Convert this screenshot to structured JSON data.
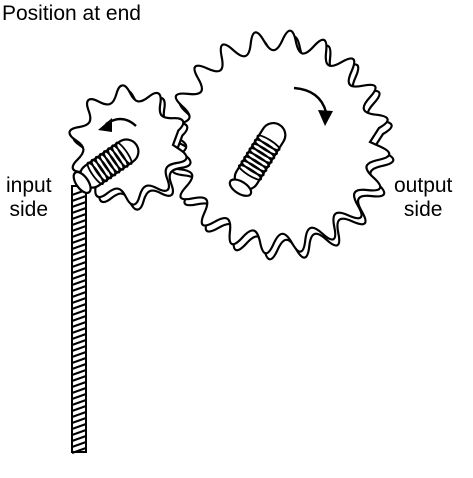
{
  "title": "Position at end",
  "labels": {
    "input": [
      "input",
      "side"
    ],
    "output": [
      "output",
      "side"
    ]
  },
  "colors": {
    "ink": "#000000",
    "paper": "#ffffff"
  },
  "parts": {
    "small_gear": {
      "teeth": 10,
      "rotation": "counterclockwise",
      "icon": "gear-icon"
    },
    "large_gear": {
      "teeth": 20,
      "rotation": "clockwise",
      "icon": "gear-icon"
    },
    "string": {
      "icon": "twisted-string-icon"
    }
  }
}
